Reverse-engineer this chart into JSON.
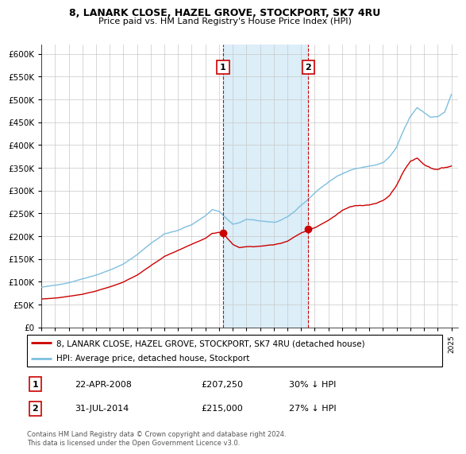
{
  "title": "8, LANARK CLOSE, HAZEL GROVE, STOCKPORT, SK7 4RU",
  "subtitle": "Price paid vs. HM Land Registry's House Price Index (HPI)",
  "legend_label_red": "8, LANARK CLOSE, HAZEL GROVE, STOCKPORT, SK7 4RU (detached house)",
  "legend_label_blue": "HPI: Average price, detached house, Stockport",
  "sale1_label": "1",
  "sale1_date": "22-APR-2008",
  "sale1_price": "£207,250",
  "sale1_pct": "30% ↓ HPI",
  "sale2_label": "2",
  "sale2_date": "31-JUL-2014",
  "sale2_price": "£215,000",
  "sale2_pct": "27% ↓ HPI",
  "footnote": "Contains HM Land Registry data © Crown copyright and database right 2024.\nThis data is licensed under the Open Government Licence v3.0.",
  "sale1_year": 2008.29,
  "sale2_year": 2014.54,
  "sale1_value": 207250,
  "sale2_value": 215000,
  "hpi_color": "#7fbfdf",
  "price_color": "#cc0000",
  "vline_color": "#cc0000",
  "highlight_color": "#dceef8",
  "ylim_min": 0,
  "ylim_max": 620000,
  "xlim_min": 1995.0,
  "xlim_max": 2025.5,
  "background_color": "#f0f4f8"
}
